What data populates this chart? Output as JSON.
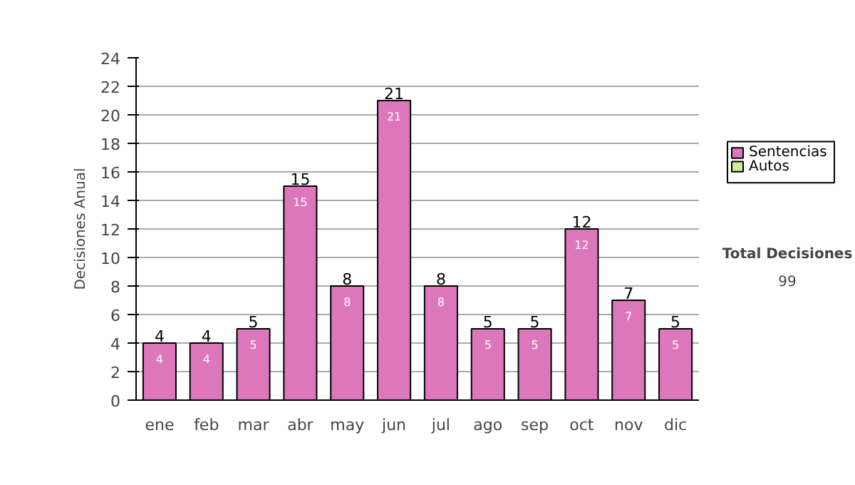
{
  "chart_data": {
    "type": "bar",
    "ylabel": "Decisiones Anual",
    "categories": [
      "ene",
      "feb",
      "mar",
      "abr",
      "may",
      "jun",
      "jul",
      "ago",
      "sep",
      "oct",
      "nov",
      "dic"
    ],
    "series": [
      {
        "name": "Sentencias",
        "color": "#dd77bb",
        "values": [
          4,
          4,
          5,
          15,
          8,
          21,
          8,
          5,
          5,
          12,
          7,
          5
        ]
      },
      {
        "name": "Autos",
        "color": "#ccee99",
        "values": [
          null,
          null,
          null,
          null,
          null,
          null,
          null,
          null,
          null,
          null,
          null,
          null
        ]
      }
    ],
    "stacked": true,
    "data_labels": true,
    "totals": [
      "4",
      "4",
      "5",
      "15",
      "8",
      "21",
      "8",
      "5",
      "5",
      "12",
      "7",
      "5"
    ],
    "ylim": [
      0,
      24
    ],
    "yticks": [
      0,
      2,
      4,
      6,
      8,
      10,
      12,
      14,
      16,
      18,
      20,
      22,
      24
    ],
    "grid": "y",
    "legend": "right",
    "annotations": [
      "Total Decisiones",
      "99"
    ]
  }
}
